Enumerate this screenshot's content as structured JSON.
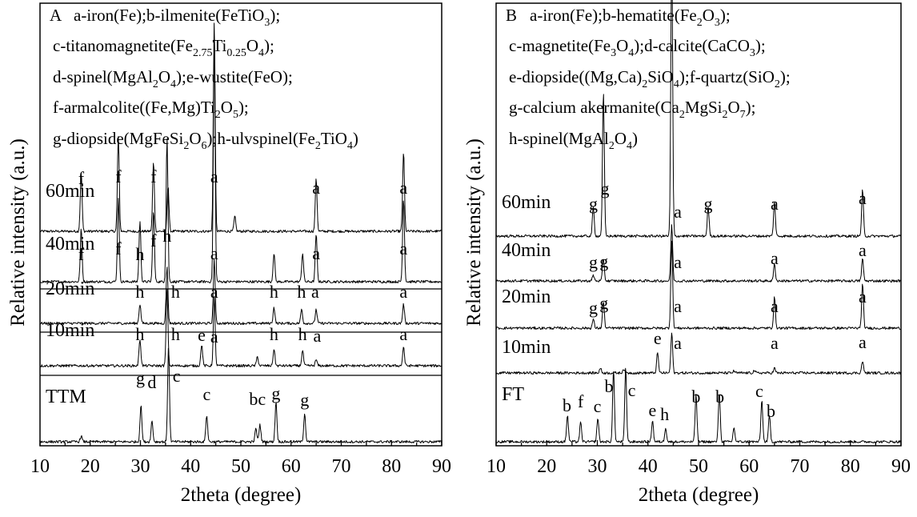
{
  "chart_data": [
    {
      "type": "line",
      "panel_letter": "A",
      "legend_lines": [
        [
          "a-iron(Fe);b-ilmenite(FeTiO",
          {
            "sub": "3"
          },
          ");"
        ],
        [
          "c-titanomagnetite(Fe",
          {
            "sub": "2.75"
          },
          "Ti",
          {
            "sub": "0.25"
          },
          "O",
          {
            "sub": "4"
          },
          ");"
        ],
        [
          "d-spinel(MgAl",
          {
            "sub": "2"
          },
          "O",
          {
            "sub": "4"
          },
          ");e-wustite(FeO);"
        ],
        [
          "f-armalcolite((Fe,Mg)Ti",
          {
            "sub": "2"
          },
          "O",
          {
            "sub": "5"
          },
          ");"
        ],
        [
          "g-diopside(MgFeSi",
          {
            "sub": "2"
          },
          "O",
          {
            "sub": "6"
          },
          ");h-ulvspinel(Fe",
          {
            "sub": "2"
          },
          "TiO",
          {
            "sub": "4"
          },
          ")"
        ]
      ],
      "xlabel": "2theta (degree)",
      "ylabel": "Relative intensity (a.u.)",
      "xlim": [
        10,
        90
      ],
      "xticks": [
        "10",
        "20",
        "30",
        "40",
        "50",
        "60",
        "70",
        "80",
        "90"
      ],
      "series": [
        {
          "name": "60min",
          "peaks": [
            [
              18.2,
              0.28
            ],
            [
              25.6,
              0.45
            ],
            [
              32.6,
              0.33
            ],
            [
              35.5,
              0.22
            ],
            [
              44.7,
              1.0
            ],
            [
              48.8,
              0.07
            ],
            [
              65.0,
              0.25
            ],
            [
              82.4,
              0.38
            ]
          ],
          "labels": [
            [
              "f",
              18.2
            ],
            [
              "f",
              25.6
            ],
            [
              "f",
              32.6
            ],
            [
              "a",
              44.7
            ],
            [
              "a",
              65.0
            ],
            [
              "a",
              82.4
            ]
          ]
        },
        {
          "name": "40min",
          "peaks": [
            [
              18.2,
              0.22
            ],
            [
              25.6,
              0.35
            ],
            [
              29.9,
              0.25
            ],
            [
              32.6,
              0.3
            ],
            [
              35.3,
              0.6
            ],
            [
              44.7,
              1.0
            ],
            [
              56.6,
              0.12
            ],
            [
              62.3,
              0.12
            ],
            [
              65.0,
              0.2
            ],
            [
              82.4,
              0.35
            ]
          ],
          "labels": [
            [
              "f",
              18.2
            ],
            [
              "f",
              25.6
            ],
            [
              "h",
              29.9
            ],
            [
              "f",
              32.6
            ],
            [
              "h",
              35.3
            ],
            [
              "a",
              44.7
            ],
            [
              "a",
              65.0
            ],
            [
              "a",
              82.4
            ]
          ]
        },
        {
          "name": "20min",
          "peaks": [
            [
              29.9,
              0.3
            ],
            [
              35.3,
              0.9
            ],
            [
              44.7,
              1.0
            ],
            [
              56.6,
              0.25
            ],
            [
              62.1,
              0.22
            ],
            [
              65.0,
              0.22
            ],
            [
              82.4,
              0.3
            ]
          ],
          "labels": [
            [
              "h",
              29.9
            ],
            [
              "h",
              37.0
            ],
            [
              "a",
              44.7
            ],
            [
              "h",
              56.6
            ],
            [
              "h",
              62.1
            ],
            [
              "a",
              64.8
            ],
            [
              "a",
              82.4
            ]
          ]
        },
        {
          "name": "10min",
          "peaks": [
            [
              29.9,
              0.35
            ],
            [
              35.3,
              1.0
            ],
            [
              42.2,
              0.28
            ],
            [
              44.7,
              0.9
            ],
            [
              53.3,
              0.12
            ],
            [
              56.6,
              0.22
            ],
            [
              62.3,
              0.2
            ],
            [
              65.0,
              0.08
            ],
            [
              82.4,
              0.25
            ]
          ],
          "labels": [
            [
              "h",
              29.9
            ],
            [
              "h",
              37.0
            ],
            [
              "e",
              42.2
            ],
            [
              "a",
              44.7
            ],
            [
              "h",
              56.6
            ],
            [
              "h",
              62.3
            ],
            [
              "a",
              65.2
            ],
            [
              "a",
              82.4
            ]
          ]
        },
        {
          "name": "TTM",
          "peaks": [
            [
              18.2,
              0.06
            ],
            [
              30.1,
              0.38
            ],
            [
              32.3,
              0.22
            ],
            [
              35.6,
              1.0
            ],
            [
              43.2,
              0.28
            ],
            [
              53.0,
              0.14
            ],
            [
              53.8,
              0.18
            ],
            [
              57.0,
              0.42
            ],
            [
              62.7,
              0.3
            ]
          ],
          "labels": [
            [
              "g",
              30.0
            ],
            [
              "d",
              32.3
            ],
            [
              "c",
              37.2
            ],
            [
              "c",
              43.2
            ],
            [
              "bc",
              53.3
            ],
            [
              "g",
              57.0
            ],
            [
              "g",
              62.7
            ]
          ]
        }
      ]
    },
    {
      "type": "line",
      "panel_letter": "B",
      "legend_lines": [
        [
          "a-iron(Fe);b-hematite(Fe",
          {
            "sub": "2"
          },
          "O",
          {
            "sub": "3"
          },
          ");"
        ],
        [
          "c-magnetite(Fe",
          {
            "sub": "3"
          },
          "O",
          {
            "sub": "4"
          },
          ");d-calcite(CaCO",
          {
            "sub": "3"
          },
          ");"
        ],
        [
          "e-diopside((Mg,Ca)",
          {
            "sub": "2"
          },
          "SiO",
          {
            "sub": "4"
          },
          ");f-quartz(SiO",
          {
            "sub": "2"
          },
          ");"
        ],
        [
          "g-calcium akermanite(Ca",
          {
            "sub": "2"
          },
          "MgSi",
          {
            "sub": "2"
          },
          "O",
          {
            "sub": "7"
          },
          ");"
        ],
        [
          "h-spinel(MgAl",
          {
            "sub": "2"
          },
          "O",
          {
            "sub": "4"
          },
          ")"
        ]
      ],
      "xlabel": "2theta (degree)",
      "ylabel": "Relative intensity (a.u.)",
      "xlim": [
        10,
        90
      ],
      "xticks": [
        "10",
        "20",
        "30",
        "40",
        "50",
        "60",
        "70",
        "80",
        "90"
      ],
      "series": [
        {
          "name": "60min",
          "peaks": [
            [
              29.2,
              0.1
            ],
            [
              31.2,
              0.5
            ],
            [
              44.7,
              1.0
            ],
            [
              51.9,
              0.1
            ],
            [
              65.0,
              0.12
            ],
            [
              82.4,
              0.16
            ]
          ],
          "labels": [
            [
              "g",
              29.2
            ],
            [
              "g",
              31.5
            ],
            [
              "a",
              45.9
            ],
            [
              "g",
              51.9
            ],
            [
              "a",
              65.0
            ],
            [
              "a",
              82.4
            ]
          ]
        },
        {
          "name": "40min",
          "peaks": [
            [
              29.2,
              0.1
            ],
            [
              31.2,
              0.4
            ],
            [
              44.7,
              1.0
            ],
            [
              65.0,
              0.3
            ],
            [
              82.4,
              0.4
            ]
          ],
          "labels": [
            [
              "g",
              29.2
            ],
            [
              "g",
              31.3
            ],
            [
              "a",
              45.9
            ],
            [
              "a",
              65.0
            ],
            [
              "a",
              82.4
            ]
          ]
        },
        {
          "name": "20min",
          "peaks": [
            [
              29.2,
              0.1
            ],
            [
              31.2,
              0.3
            ],
            [
              44.7,
              1.0
            ],
            [
              65.0,
              0.35
            ],
            [
              82.4,
              0.5
            ]
          ],
          "labels": [
            [
              "g",
              29.2
            ],
            [
              "g",
              31.3
            ],
            [
              "a",
              45.9
            ],
            [
              "a",
              65.0
            ],
            [
              "a",
              82.4
            ]
          ]
        },
        {
          "name": "10min",
          "peaks": [
            [
              30.6,
              0.12
            ],
            [
              35.2,
              0.1
            ],
            [
              41.9,
              0.5
            ],
            [
              44.7,
              1.0
            ],
            [
              57.0,
              0.05
            ],
            [
              61.0,
              0.06
            ],
            [
              65.0,
              0.12
            ],
            [
              82.4,
              0.3
            ]
          ],
          "labels": [
            [
              "e",
              41.9
            ],
            [
              "a",
              45.9
            ],
            [
              "a",
              65.0
            ],
            [
              "a",
              82.4
            ]
          ]
        },
        {
          "name": "FT",
          "peaks": [
            [
              24.1,
              0.22
            ],
            [
              26.7,
              0.16
            ],
            [
              30.1,
              0.2
            ],
            [
              33.2,
              0.6
            ],
            [
              35.6,
              0.62
            ],
            [
              40.9,
              0.18
            ],
            [
              43.5,
              0.12
            ],
            [
              49.5,
              0.4
            ],
            [
              54.1,
              0.42
            ],
            [
              57.0,
              0.12
            ],
            [
              62.5,
              0.35
            ],
            [
              64.0,
              0.22
            ]
          ],
          "labels": [
            [
              "b",
              24.0
            ],
            [
              "f",
              26.7
            ],
            [
              "c",
              30.0
            ],
            [
              "b",
              32.3
            ],
            [
              "c",
              36.8
            ],
            [
              "e",
              40.9
            ],
            [
              "h",
              43.3
            ],
            [
              "b",
              49.5
            ],
            [
              "b",
              54.2
            ],
            [
              "c",
              62.0
            ],
            [
              "b",
              64.3
            ]
          ]
        }
      ]
    }
  ]
}
